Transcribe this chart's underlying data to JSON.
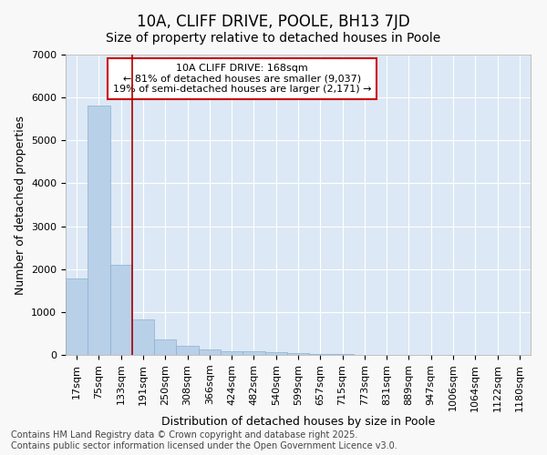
{
  "title1": "10A, CLIFF DRIVE, POOLE, BH13 7JD",
  "title2": "Size of property relative to detached houses in Poole",
  "xlabel": "Distribution of detached houses by size in Poole",
  "ylabel": "Number of detached properties",
  "categories": [
    "17sqm",
    "75sqm",
    "133sqm",
    "191sqm",
    "250sqm",
    "308sqm",
    "366sqm",
    "424sqm",
    "482sqm",
    "540sqm",
    "599sqm",
    "657sqm",
    "715sqm",
    "773sqm",
    "831sqm",
    "889sqm",
    "947sqm",
    "1006sqm",
    "1064sqm",
    "1122sqm",
    "1180sqm"
  ],
  "values": [
    1780,
    5810,
    2090,
    820,
    370,
    210,
    120,
    90,
    75,
    55,
    35,
    20,
    12,
    7,
    5,
    4,
    3,
    2,
    2,
    1,
    1
  ],
  "bar_color": "#b8d0e8",
  "bar_edge_color": "#8ab0d0",
  "vline_x_index": 2,
  "annotation_text": "10A CLIFF DRIVE: 168sqm\n← 81% of detached houses are smaller (9,037)\n19% of semi-detached houses are larger (2,171) →",
  "annotation_box_facecolor": "#ffffff",
  "annotation_box_edgecolor": "#cc0000",
  "vline_color": "#aa0000",
  "fig_background": "#f8f8f8",
  "axes_background": "#dce8f5",
  "grid_color": "#ffffff",
  "ylim": [
    0,
    7000
  ],
  "yticks": [
    0,
    1000,
    2000,
    3000,
    4000,
    5000,
    6000,
    7000
  ],
  "footer_text": "Contains HM Land Registry data © Crown copyright and database right 2025.\nContains public sector information licensed under the Open Government Licence v3.0.",
  "title1_fontsize": 12,
  "title2_fontsize": 10,
  "xlabel_fontsize": 9,
  "ylabel_fontsize": 9,
  "tick_fontsize": 8,
  "annotation_fontsize": 8,
  "footer_fontsize": 7,
  "figsize": [
    6.0,
    5.0
  ],
  "dpi": 100
}
